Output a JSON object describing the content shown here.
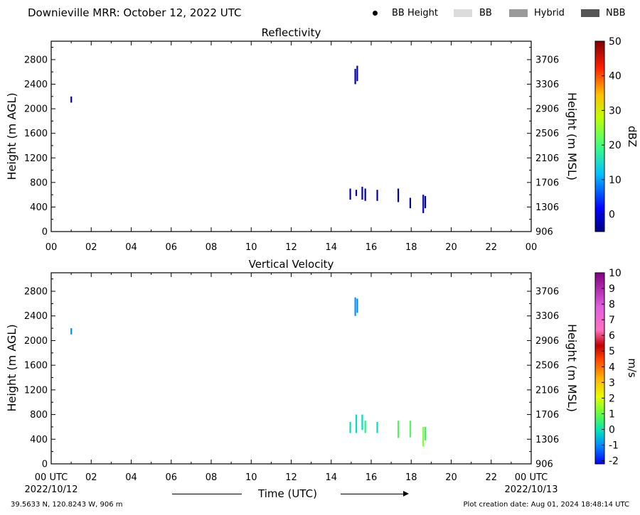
{
  "header": {
    "title": "Downieville MRR:  October 12, 2022 UTC",
    "legend": [
      {
        "label": "BB Height",
        "kind": "dot",
        "color": "#000000"
      },
      {
        "label": "BB",
        "kind": "box",
        "color": "#dcdcdc"
      },
      {
        "label": "Hybrid",
        "kind": "box",
        "color": "#9a9a9a"
      },
      {
        "label": "NBB",
        "kind": "box",
        "color": "#555555"
      }
    ]
  },
  "footer": {
    "location": "39.5633 N, 120.8243 W, 906 m",
    "created": "Plot creation date: Aug 01, 2024 18:48:14 UTC"
  },
  "chart_data": [
    {
      "type": "heatmap",
      "title": "Reflectivity",
      "ylabel": "Height (m AGL)",
      "ylabel_right": "Height (m MSL)",
      "xlim": [
        0,
        24
      ],
      "ylim": [
        0,
        3100
      ],
      "x_ticks": [
        "00",
        "02",
        "04",
        "06",
        "08",
        "10",
        "12",
        "14",
        "16",
        "18",
        "20",
        "22",
        "00"
      ],
      "y_ticks": [
        0,
        400,
        800,
        1200,
        1600,
        2000,
        2400,
        2800
      ],
      "y_ticks_right": [
        "906",
        "1306",
        "1706",
        "2106",
        "2506",
        "2906",
        "3306",
        "3706"
      ],
      "colorbar": {
        "label": "dBZ",
        "min": -5,
        "max": 50,
        "ticks": [
          "0",
          "10",
          "20",
          "30",
          "40",
          "50"
        ]
      },
      "echoes": [
        {
          "time": 1.0,
          "bottom": 2100,
          "top": 2200,
          "value": -3
        },
        {
          "time": 15.2,
          "bottom": 2400,
          "top": 2650,
          "value": -3
        },
        {
          "time": 15.3,
          "bottom": 2450,
          "top": 2700,
          "value": -2
        },
        {
          "time": 14.95,
          "bottom": 520,
          "top": 700,
          "value": -3
        },
        {
          "time": 15.25,
          "bottom": 580,
          "top": 680,
          "value": -2
        },
        {
          "time": 15.55,
          "bottom": 520,
          "top": 730,
          "value": -3
        },
        {
          "time": 15.7,
          "bottom": 500,
          "top": 700,
          "value": -3
        },
        {
          "time": 16.3,
          "bottom": 500,
          "top": 680,
          "value": -3
        },
        {
          "time": 17.35,
          "bottom": 480,
          "top": 700,
          "value": -3
        },
        {
          "time": 17.95,
          "bottom": 380,
          "top": 550,
          "value": -3
        },
        {
          "time": 18.6,
          "bottom": 300,
          "top": 600,
          "value": -2
        },
        {
          "time": 18.7,
          "bottom": 380,
          "top": 580,
          "value": -3
        }
      ]
    },
    {
      "type": "heatmap",
      "title": "Vertical Velocity",
      "ylabel": "Height (m AGL)",
      "ylabel_right": "Height (m MSL)",
      "xlabel": "Time (UTC)",
      "xlim": [
        0,
        24
      ],
      "ylim": [
        0,
        3100
      ],
      "x_ticks": [
        "00 UTC",
        "02",
        "04",
        "06",
        "08",
        "10",
        "12",
        "14",
        "16",
        "18",
        "20",
        "22",
        "00 UTC"
      ],
      "x_date_left": "2022/10/12",
      "x_date_right": "2022/10/13",
      "y_ticks": [
        0,
        400,
        800,
        1200,
        1600,
        2000,
        2400,
        2800
      ],
      "y_ticks_right": [
        "906",
        "1306",
        "1706",
        "2106",
        "2506",
        "2906",
        "3306",
        "3706"
      ],
      "colorbar": {
        "label": "m/s",
        "min": -2.2,
        "max": 10,
        "ticks": [
          "-2",
          "-1",
          "0",
          "1",
          "2",
          "3",
          "4",
          "5",
          "6",
          "7",
          "8",
          "9",
          "10"
        ]
      },
      "echoes": [
        {
          "time": 1.0,
          "bottom": 2100,
          "top": 2200,
          "value": -1
        },
        {
          "time": 15.2,
          "bottom": 2400,
          "top": 2700,
          "value": -1
        },
        {
          "time": 15.3,
          "bottom": 2450,
          "top": 2680,
          "value": -1
        },
        {
          "time": 14.95,
          "bottom": 500,
          "top": 680,
          "value": 0
        },
        {
          "time": 15.25,
          "bottom": 500,
          "top": 800,
          "value": 0
        },
        {
          "time": 15.55,
          "bottom": 550,
          "top": 800,
          "value": 0
        },
        {
          "time": 15.7,
          "bottom": 500,
          "top": 700,
          "value": 0.5
        },
        {
          "time": 16.3,
          "bottom": 500,
          "top": 680,
          "value": 0
        },
        {
          "time": 17.35,
          "bottom": 420,
          "top": 700,
          "value": 0.8
        },
        {
          "time": 17.95,
          "bottom": 430,
          "top": 700,
          "value": 0.8
        },
        {
          "time": 18.6,
          "bottom": 280,
          "top": 600,
          "value": 1.2
        },
        {
          "time": 18.7,
          "bottom": 380,
          "top": 600,
          "value": 0.6
        }
      ]
    }
  ]
}
